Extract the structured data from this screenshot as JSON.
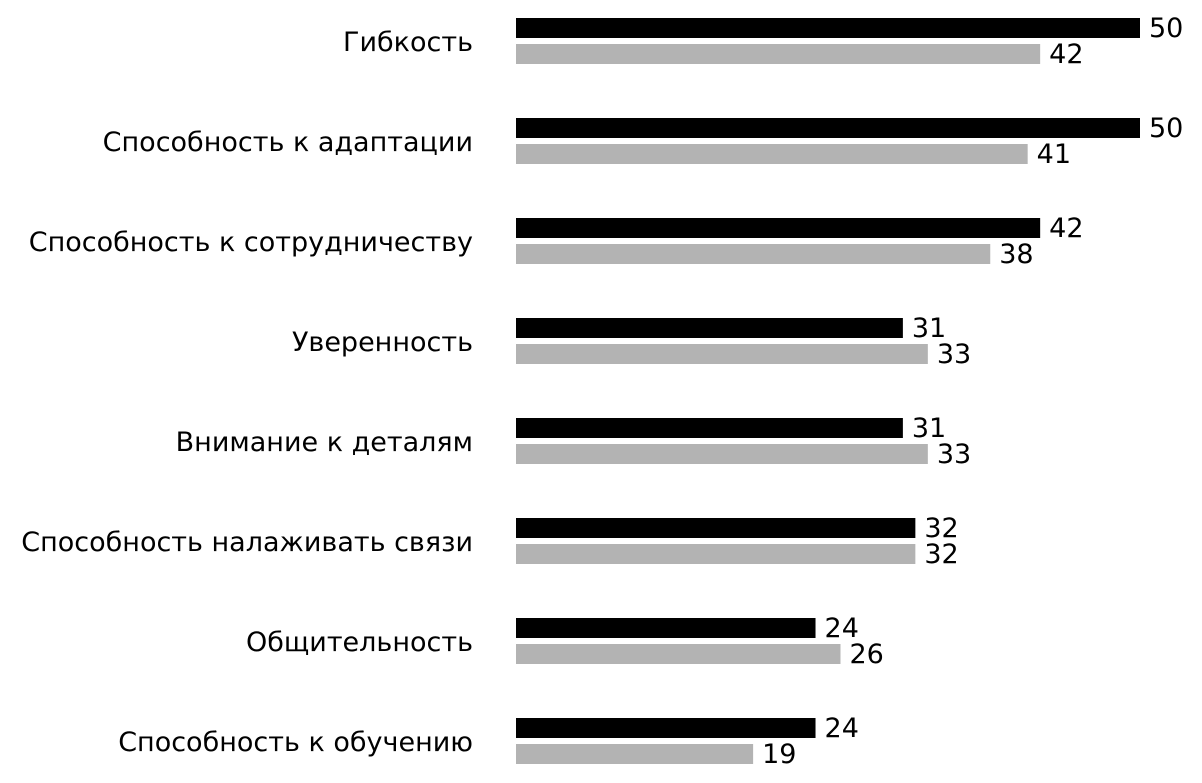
{
  "chart_data": {
    "type": "bar",
    "orientation": "horizontal",
    "categories": [
      "Гибкость",
      "Способность к адаптации",
      "Способность к сотрудничеству",
      "Уверенность",
      "Внимание к деталям",
      "Способность налаживать связи",
      "Общительность",
      "Способность к обучению"
    ],
    "series": [
      {
        "values": [
          50,
          50,
          42,
          31,
          31,
          32,
          24,
          24
        ],
        "color": "#000000"
      },
      {
        "values": [
          42,
          41,
          38,
          33,
          33,
          32,
          26,
          19
        ],
        "color": "#b3b3b3"
      }
    ],
    "xlim": [
      0,
      50
    ],
    "grid": false,
    "legend": "none",
    "axes_visible": false,
    "data_labels": true
  }
}
